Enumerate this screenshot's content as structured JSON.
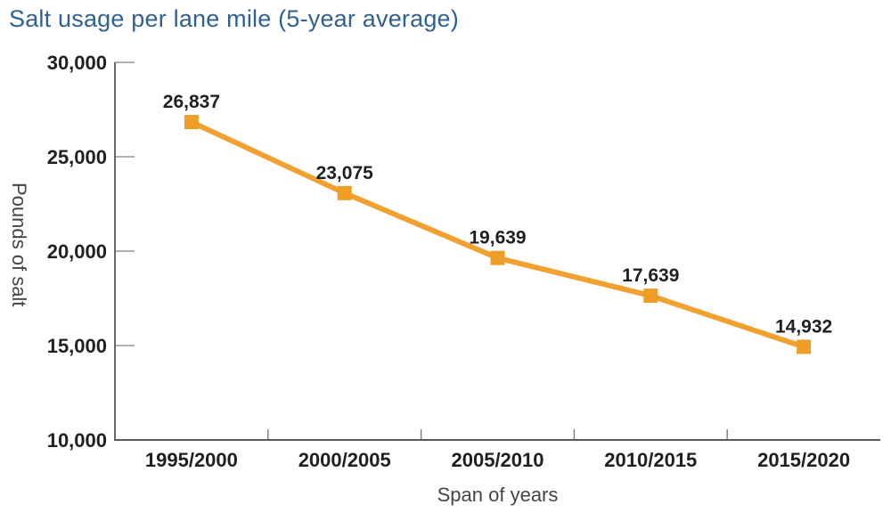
{
  "chart_data": {
    "type": "line",
    "title": "Salt usage per lane mile (5-year average)",
    "xlabel": "Span of years",
    "ylabel": "Pounds of salt",
    "categories": [
      "1995/2000",
      "2000/2005",
      "2005/2010",
      "2010/2015",
      "2015/2020"
    ],
    "values": [
      26837,
      23075,
      19639,
      17639,
      14932
    ],
    "point_labels": [
      "26,837",
      "23,075",
      "19,639",
      "17,639",
      "14,932"
    ],
    "ylim": [
      10000,
      30000
    ],
    "ytick_interval": 5000,
    "ytick_labels": [
      "10,000",
      "15,000",
      "20,000",
      "25,000",
      "30,000"
    ],
    "grid": false,
    "legend": false,
    "marker_shape": "square",
    "colors": {
      "line": "#F0A12F",
      "marker": "#EE9D27",
      "title": "#31618F",
      "label": "#231F20",
      "axis": "#58595B",
      "tick": "#808285",
      "axis_title": "#454549"
    }
  }
}
